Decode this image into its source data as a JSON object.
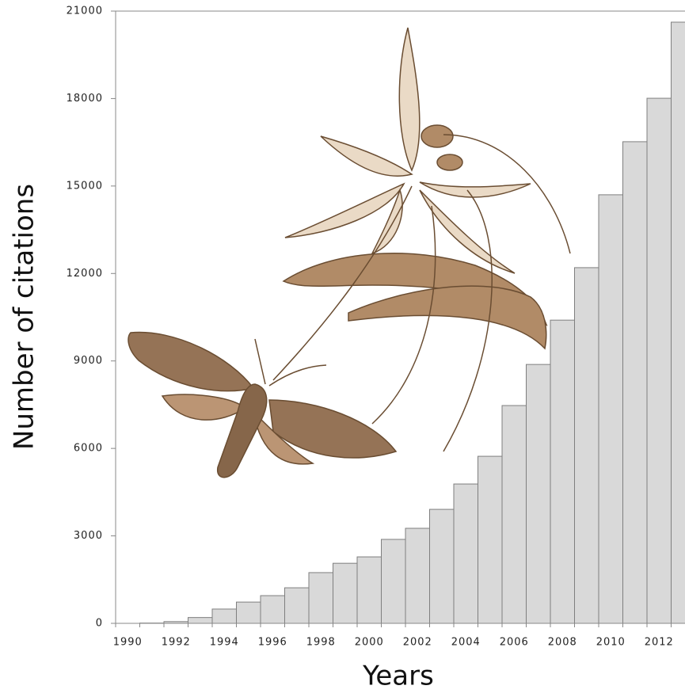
{
  "chart_data": {
    "type": "bar",
    "x_label": "Years",
    "y_label": "Number of citations",
    "categories": [
      "1990",
      null,
      "1992",
      null,
      "1994",
      null,
      "1996",
      null,
      "1998",
      null,
      "2000",
      null,
      "2002",
      null,
      "2004",
      null,
      "2006",
      null,
      "2008",
      null,
      "2010",
      null,
      "2012",
      null
    ],
    "values": [
      0,
      10,
      60,
      200,
      490,
      730,
      950,
      1220,
      1740,
      2060,
      2280,
      2880,
      3260,
      3910,
      4780,
      5730,
      7470,
      8880,
      10400,
      12200,
      14700,
      16520,
      18010,
      20620
    ],
    "color": "#d9d9d9",
    "edge_color": "#7f7f7f",
    "ylim": [
      0,
      21000
    ],
    "yticks": [
      0,
      3000,
      6000,
      9000,
      12000,
      15000,
      18000,
      21000
    ]
  }
}
